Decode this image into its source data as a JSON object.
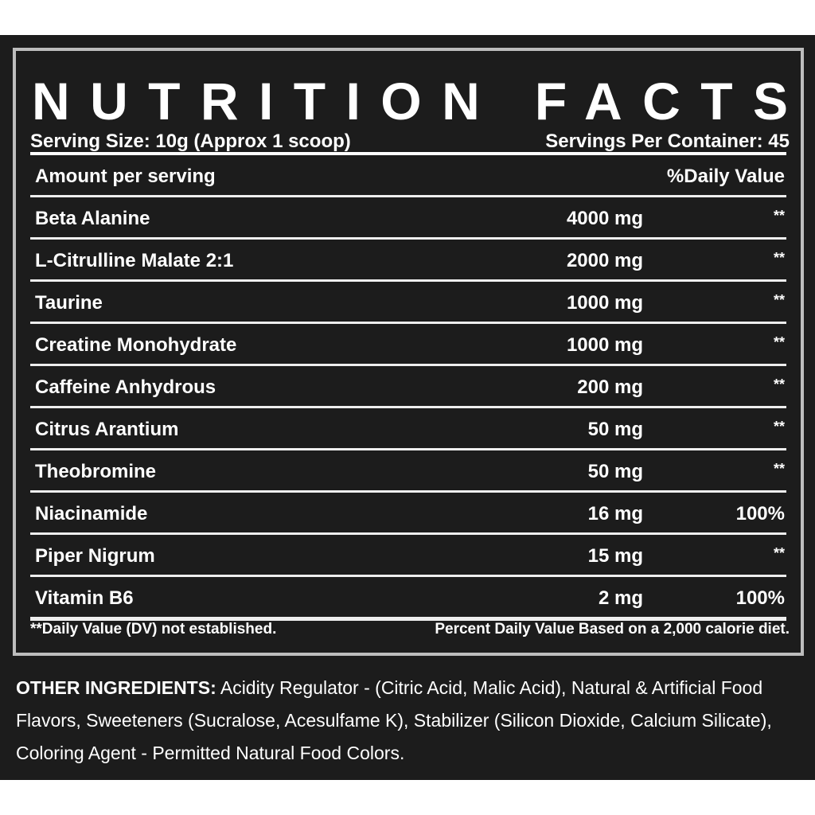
{
  "title": "NUTRITION FACTS",
  "serving_size": "Serving Size: 10g (Approx 1 scoop)",
  "servings_per_container": "Servings Per Container: 45",
  "table": {
    "header": [
      "Amount per serving",
      "%Daily Value"
    ],
    "rows": [
      [
        "Beta Alanine",
        "4000 mg",
        "**"
      ],
      [
        "L-Citrulline Malate 2:1",
        "2000 mg",
        "**"
      ],
      [
        "Taurine",
        "1000 mg",
        "**"
      ],
      [
        "Creatine Monohydrate",
        "1000 mg",
        "**"
      ],
      [
        "Caffeine Anhydrous",
        "200 mg",
        "**"
      ],
      [
        "Citrus Arantium",
        "50 mg",
        "**"
      ],
      [
        "Theobromine",
        "50 mg",
        "**"
      ],
      [
        "Niacinamide",
        "16 mg",
        "100%"
      ],
      [
        "Piper Nigrum",
        "15 mg",
        "**"
      ],
      [
        "Vitamin B6",
        "2 mg",
        "100%"
      ]
    ]
  },
  "footnotes": [
    "**Daily Value (DV) not established.",
    "Percent Daily Value Based on a 2,000 calorie diet."
  ],
  "other_ingredients": {
    "label": "OTHER INGREDIENTS:",
    "text": "Acidity Regulator - (Citric Acid, Malic Acid), Natural & Artificial Food Flavors, Sweeteners (Sucralose, Acesulfame K), Stabilizer (Silicon Dioxide, Calcium Silicate), Coloring Agent - Permitted Natural Food Colors."
  }
}
